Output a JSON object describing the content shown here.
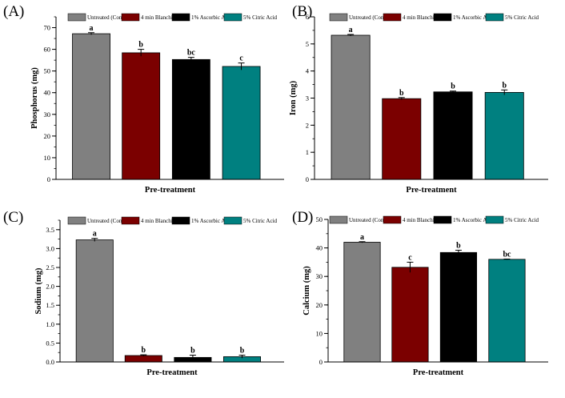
{
  "chart_data": [
    {
      "type": "bar",
      "panel_label": "(A)",
      "categories": [
        "Untreated (Control)",
        "4 min Blanching",
        "1% Ascorbic Acid",
        "5% Citric Acid"
      ],
      "values": [
        67.2,
        58.4,
        55.3,
        52.1
      ],
      "errors": [
        0.5,
        1.6,
        1.0,
        1.6
      ],
      "significance": [
        "a",
        "b",
        "bc",
        "c"
      ],
      "xlabel": "Pre-treatment",
      "ylabel": "Phosphorus (mg)",
      "ylim": [
        0,
        75
      ],
      "yticks": [
        "0",
        "10",
        "20",
        "30",
        "40",
        "50",
        "60",
        "70"
      ],
      "ytick_values": [
        0,
        10,
        20,
        30,
        40,
        50,
        60,
        70
      ],
      "minor_step": 5
    },
    {
      "type": "bar",
      "panel_label": "(B)",
      "categories": [
        "Untreated (Control)",
        "4 min Blanching",
        "1% Ascorbic Acid",
        "5% Citric Acid"
      ],
      "values": [
        5.32,
        2.98,
        3.23,
        3.21
      ],
      "errors": [
        0.03,
        0.04,
        0.03,
        0.09
      ],
      "significance": [
        "a",
        "b",
        "b",
        "b"
      ],
      "xlabel": "Pre-treatment",
      "ylabel": "Iron (mg)",
      "ylim": [
        0,
        6
      ],
      "yticks": [
        "0",
        "1",
        "2",
        "3",
        "4",
        "5",
        "6"
      ],
      "ytick_values": [
        0,
        1,
        2,
        3,
        4,
        5,
        6
      ],
      "minor_step": 0.5
    },
    {
      "type": "bar",
      "panel_label": "(C)",
      "categories": [
        "Untreated (Control)",
        "4 min Blanching",
        "1% Ascorbic Acid",
        "5% Citric Acid"
      ],
      "values": [
        3.23,
        0.17,
        0.12,
        0.14
      ],
      "errors": [
        0.04,
        0.02,
        0.06,
        0.04
      ],
      "significance": [
        "a",
        "b",
        "b",
        "b"
      ],
      "xlabel": "Pre-treatment",
      "ylabel": "Sodium (mg)",
      "ylim": [
        0,
        3.75
      ],
      "yticks": [
        "0.0",
        "0.5",
        "1.0",
        "1.5",
        "2.0",
        "2.5",
        "3.0",
        "3.5"
      ],
      "ytick_values": [
        0,
        0.5,
        1.0,
        1.5,
        2.0,
        2.5,
        3.0,
        3.5
      ],
      "minor_step": 0.25
    },
    {
      "type": "bar",
      "panel_label": "(D)",
      "categories": [
        "Untreated (Control)",
        "4 min Blanching",
        "1% Ascorbic Acid",
        "5% Citric Acid"
      ],
      "values": [
        42.0,
        33.2,
        38.4,
        36.0
      ],
      "errors": [
        0.2,
        1.8,
        0.8,
        0.1
      ],
      "significance": [
        "a",
        "c",
        "b",
        "bc"
      ],
      "xlabel": "Pre-treatment",
      "ylabel": "Calcium (mg)",
      "ylim": [
        0,
        50
      ],
      "yticks": [
        "0",
        "10",
        "20",
        "30",
        "40",
        "50"
      ],
      "ytick_values": [
        0,
        10,
        20,
        30,
        40,
        50
      ],
      "minor_step": 5
    }
  ],
  "colors": {
    "series": [
      "#808080",
      "#7b0000",
      "#000000",
      "#008080"
    ]
  }
}
